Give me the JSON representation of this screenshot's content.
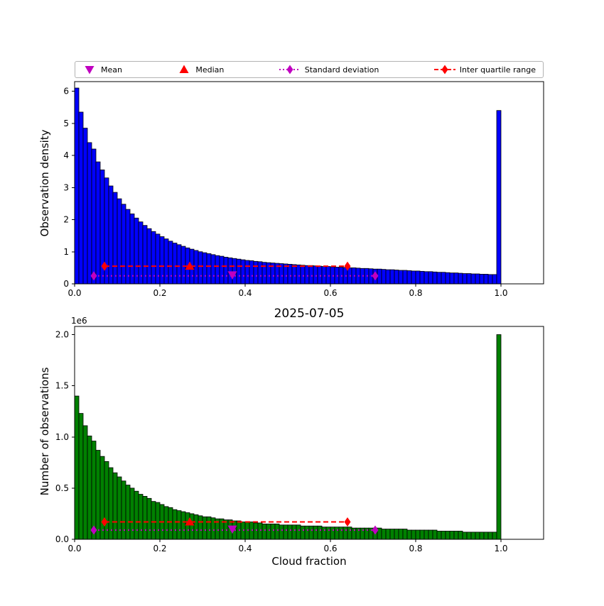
{
  "title": "2025-07-05",
  "chart_data": [
    {
      "type": "bar",
      "panel": "top",
      "title": "",
      "xlabel": "",
      "ylabel": "Observation density",
      "xlim": [
        0.0,
        1.1
      ],
      "ylim": [
        0.0,
        6.3
      ],
      "bar_color": "#0000ff",
      "bar_edge_color": "#000000",
      "bin_start": 0.0,
      "bin_width": 0.01,
      "grid": false,
      "xticks": [
        {
          "v": 0.0,
          "label": "0.0"
        },
        {
          "v": 0.2,
          "label": "0.2"
        },
        {
          "v": 0.4,
          "label": "0.4"
        },
        {
          "v": 0.6,
          "label": "0.6"
        },
        {
          "v": 0.8,
          "label": "0.8"
        },
        {
          "v": 1.0,
          "label": "1.0"
        }
      ],
      "yticks": [
        {
          "v": 0,
          "label": "0"
        },
        {
          "v": 1,
          "label": "1"
        },
        {
          "v": 2,
          "label": "2"
        },
        {
          "v": 3,
          "label": "3"
        },
        {
          "v": 4,
          "label": "4"
        },
        {
          "v": 5,
          "label": "5"
        },
        {
          "v": 6,
          "label": "6"
        }
      ],
      "values": [
        6.1,
        5.35,
        4.85,
        4.4,
        4.2,
        3.8,
        3.55,
        3.3,
        3.05,
        2.85,
        2.65,
        2.48,
        2.32,
        2.18,
        2.05,
        1.93,
        1.82,
        1.72,
        1.63,
        1.55,
        1.47,
        1.4,
        1.33,
        1.27,
        1.22,
        1.17,
        1.12,
        1.08,
        1.04,
        1.0,
        0.97,
        0.94,
        0.91,
        0.88,
        0.86,
        0.83,
        0.81,
        0.79,
        0.77,
        0.75,
        0.73,
        0.72,
        0.7,
        0.69,
        0.67,
        0.66,
        0.65,
        0.64,
        0.63,
        0.62,
        0.61,
        0.6,
        0.59,
        0.58,
        0.57,
        0.57,
        0.56,
        0.55,
        0.54,
        0.54,
        0.53,
        0.52,
        0.52,
        0.51,
        0.5,
        0.5,
        0.49,
        0.48,
        0.48,
        0.47,
        0.46,
        0.46,
        0.45,
        0.44,
        0.44,
        0.43,
        0.42,
        0.42,
        0.41,
        0.4,
        0.4,
        0.39,
        0.38,
        0.38,
        0.37,
        0.36,
        0.36,
        0.35,
        0.34,
        0.34,
        0.33,
        0.32,
        0.32,
        0.31,
        0.31,
        0.3,
        0.3,
        0.29,
        0.29,
        5.4
      ],
      "stats": {
        "mean": {
          "x": 0.37,
          "y": 0.28,
          "marker": "triangle-down",
          "color": "#c000c0"
        },
        "median": {
          "x": 0.27,
          "y": 0.55,
          "marker": "triangle-up",
          "color": "#ff0000"
        },
        "std_range": {
          "x_start": 0.045,
          "x_end": 0.705,
          "y": 0.25,
          "linestyle": "dotted",
          "marker": "diamond",
          "color": "#c000c0"
        },
        "iqr_range": {
          "x_start": 0.07,
          "x_end": 0.64,
          "y": 0.55,
          "linestyle": "dashed",
          "marker": "diamond",
          "color": "#ff0000"
        }
      },
      "legend": {
        "position": "top",
        "items": [
          {
            "label": "Mean",
            "marker": "triangle-down",
            "color": "#c000c0",
            "line": "none"
          },
          {
            "label": "Median",
            "marker": "triangle-up",
            "color": "#ff0000",
            "line": "none"
          },
          {
            "label": "Standard deviation",
            "marker": "diamond",
            "color": "#c000c0",
            "line": "dotted"
          },
          {
            "label": "Inter quartile range",
            "marker": "diamond",
            "color": "#ff0000",
            "line": "dashed"
          }
        ]
      }
    },
    {
      "type": "bar",
      "panel": "bottom",
      "title": "2025-07-05",
      "xlabel": "Cloud fraction",
      "ylabel": "Number of observations",
      "offset_text": "1e6",
      "xlim": [
        0.0,
        1.1
      ],
      "ylim": [
        0.0,
        2.08
      ],
      "bar_color": "#008000",
      "bar_edge_color": "#000000",
      "bin_start": 0.0,
      "bin_width": 0.01,
      "grid": false,
      "xticks": [
        {
          "v": 0.0,
          "label": "0.0"
        },
        {
          "v": 0.2,
          "label": "0.2"
        },
        {
          "v": 0.4,
          "label": "0.4"
        },
        {
          "v": 0.6,
          "label": "0.6"
        },
        {
          "v": 0.8,
          "label": "0.8"
        },
        {
          "v": 1.0,
          "label": "1.0"
        }
      ],
      "yticks": [
        {
          "v": 0.0,
          "label": "0.0"
        },
        {
          "v": 0.5,
          "label": "0.5"
        },
        {
          "v": 1.0,
          "label": "1.0"
        },
        {
          "v": 1.5,
          "label": "1.5"
        },
        {
          "v": 2.0,
          "label": "2.0"
        }
      ],
      "values": [
        1.4,
        1.23,
        1.11,
        1.01,
        0.96,
        0.87,
        0.81,
        0.76,
        0.7,
        0.65,
        0.61,
        0.57,
        0.53,
        0.5,
        0.47,
        0.44,
        0.42,
        0.4,
        0.37,
        0.36,
        0.34,
        0.32,
        0.31,
        0.29,
        0.28,
        0.27,
        0.26,
        0.25,
        0.24,
        0.23,
        0.22,
        0.22,
        0.21,
        0.2,
        0.2,
        0.19,
        0.19,
        0.18,
        0.18,
        0.17,
        0.17,
        0.17,
        0.16,
        0.16,
        0.15,
        0.15,
        0.15,
        0.15,
        0.14,
        0.14,
        0.14,
        0.14,
        0.14,
        0.13,
        0.13,
        0.13,
        0.13,
        0.13,
        0.12,
        0.12,
        0.12,
        0.12,
        0.12,
        0.12,
        0.12,
        0.11,
        0.11,
        0.11,
        0.11,
        0.11,
        0.11,
        0.11,
        0.1,
        0.1,
        0.1,
        0.1,
        0.1,
        0.1,
        0.09,
        0.09,
        0.09,
        0.09,
        0.09,
        0.09,
        0.09,
        0.08,
        0.08,
        0.08,
        0.08,
        0.08,
        0.08,
        0.07,
        0.07,
        0.07,
        0.07,
        0.07,
        0.07,
        0.07,
        0.07,
        2.0
      ],
      "stats": {
        "mean": {
          "x": 0.37,
          "y": 0.1,
          "marker": "triangle-down",
          "color": "#c000c0"
        },
        "median": {
          "x": 0.27,
          "y": 0.17,
          "marker": "triangle-up",
          "color": "#ff0000"
        },
        "std_range": {
          "x_start": 0.045,
          "x_end": 0.705,
          "y": 0.09,
          "linestyle": "dotted",
          "marker": "diamond",
          "color": "#c000c0"
        },
        "iqr_range": {
          "x_start": 0.07,
          "x_end": 0.64,
          "y": 0.17,
          "linestyle": "dashed",
          "marker": "diamond",
          "color": "#ff0000"
        }
      }
    }
  ]
}
